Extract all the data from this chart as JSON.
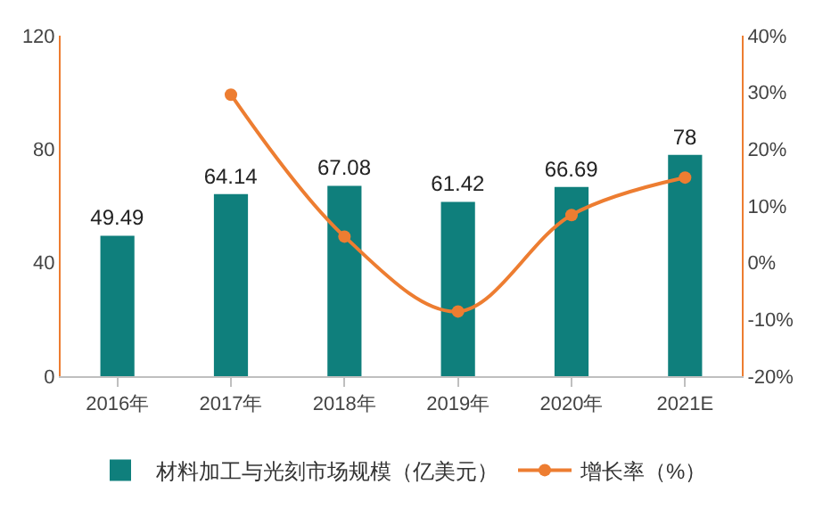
{
  "chart_data": {
    "type": "bar",
    "categories": [
      "2016年",
      "2017年",
      "2018年",
      "2019年",
      "2020年",
      "2021E"
    ],
    "series": [
      {
        "name": "材料加工与光刻市场规模（亿美元）",
        "color": "#0f7f7c",
        "values": [
          49.49,
          64.14,
          67.08,
          61.42,
          66.69,
          78
        ],
        "value_labels": [
          "49.49",
          "64.14",
          "67.08",
          "61.42",
          "66.69",
          "78"
        ]
      },
      {
        "name": "增长率（%）",
        "type": "line",
        "axis": "y2",
        "color": "#ed7d31",
        "marker": "circle",
        "values": [
          null,
          29.6,
          4.6,
          -8.6,
          8.4,
          15
        ]
      }
    ],
    "ylim": [
      0,
      120
    ],
    "yticks": [
      0,
      40,
      80,
      120
    ],
    "y2lim": [
      -20,
      40
    ],
    "y2ticks": [
      {
        "value": -20,
        "label": "-20%"
      },
      {
        "value": -10,
        "label": "-10%"
      },
      {
        "value": 0,
        "label": "0%"
      },
      {
        "value": 10,
        "label": "10%"
      },
      {
        "value": 20,
        "label": "20%"
      },
      {
        "value": 30,
        "label": "30%"
      },
      {
        "value": 40,
        "label": "40%"
      }
    ],
    "grid": false,
    "legend": "bottom"
  }
}
